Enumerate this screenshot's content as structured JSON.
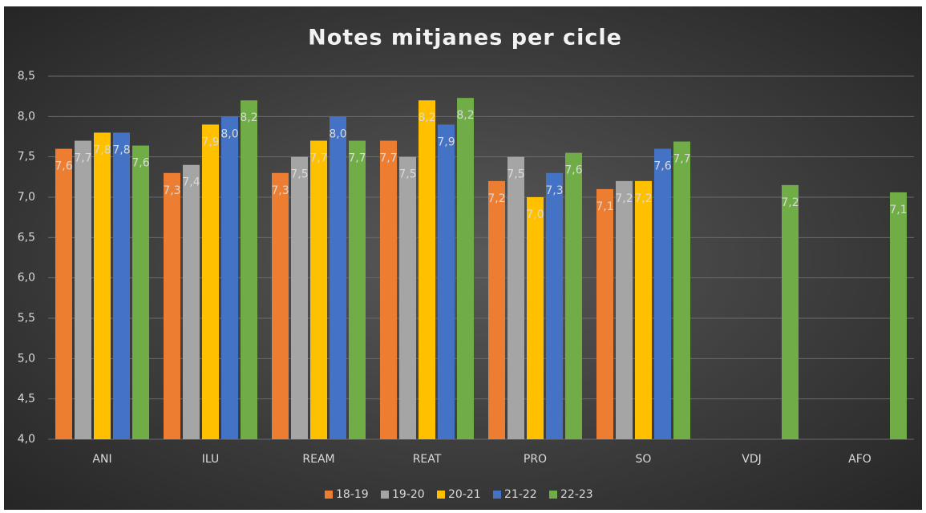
{
  "chart_data": {
    "type": "bar",
    "title": "Notes mitjanes per cicle",
    "categories": [
      "ANI",
      "ILU",
      "REAM",
      "REAT",
      "PRO",
      "SO",
      "VDJ",
      "AFO"
    ],
    "series": [
      {
        "name": "18-19",
        "color": "#ed7d31",
        "values": [
          7.6,
          7.3,
          7.3,
          7.7,
          7.2,
          7.1,
          null,
          null
        ],
        "value_labels": [
          "7,6",
          "7,3",
          "7,3",
          "7,7",
          "7,2",
          "7,1",
          null,
          null
        ]
      },
      {
        "name": "19-20",
        "color": "#a5a5a5",
        "values": [
          7.7,
          7.4,
          7.5,
          7.5,
          7.5,
          7.2,
          null,
          null
        ],
        "value_labels": [
          "7,7",
          "7,4",
          "7,5",
          "7,5",
          "7,5",
          "7,2",
          null,
          null
        ]
      },
      {
        "name": "20-21",
        "color": "#ffc000",
        "values": [
          7.8,
          7.9,
          7.7,
          8.2,
          7.0,
          7.2,
          null,
          null
        ],
        "value_labels": [
          "7,8",
          "7,9",
          "7,7",
          "8,2",
          "7,0",
          "7,2",
          null,
          null
        ]
      },
      {
        "name": "21-22",
        "color": "#4472c4",
        "values": [
          7.8,
          8.0,
          8.0,
          7.9,
          7.3,
          7.6,
          null,
          null
        ],
        "value_labels": [
          "7,8",
          "8,0",
          "8,0",
          "7,9",
          "7,3",
          "7,6",
          null,
          null
        ]
      },
      {
        "name": "22-23",
        "color": "#70ad47",
        "values": [
          7.64,
          8.2,
          7.7,
          8.23,
          7.55,
          7.69,
          7.15,
          7.06
        ],
        "value_labels": [
          "7,6",
          "8,2",
          "7,7",
          "8,2",
          "7,6",
          "7,7",
          "7,2",
          "7,1"
        ]
      }
    ],
    "ylim": [
      4,
      8.5
    ],
    "yticks": [
      {
        "value": 4,
        "label": "4,0"
      },
      {
        "value": 4.5,
        "label": "4,5"
      },
      {
        "value": 5,
        "label": "5,0"
      },
      {
        "value": 5.5,
        "label": "5,5"
      },
      {
        "value": 6,
        "label": "6,0"
      },
      {
        "value": 6.5,
        "label": "6,5"
      },
      {
        "value": 7,
        "label": "7,0"
      },
      {
        "value": 7.5,
        "label": "7,5"
      },
      {
        "value": 8,
        "label": "8,0"
      },
      {
        "value": 8.5,
        "label": "8,5"
      }
    ],
    "grid": true,
    "legend": "bottom"
  }
}
